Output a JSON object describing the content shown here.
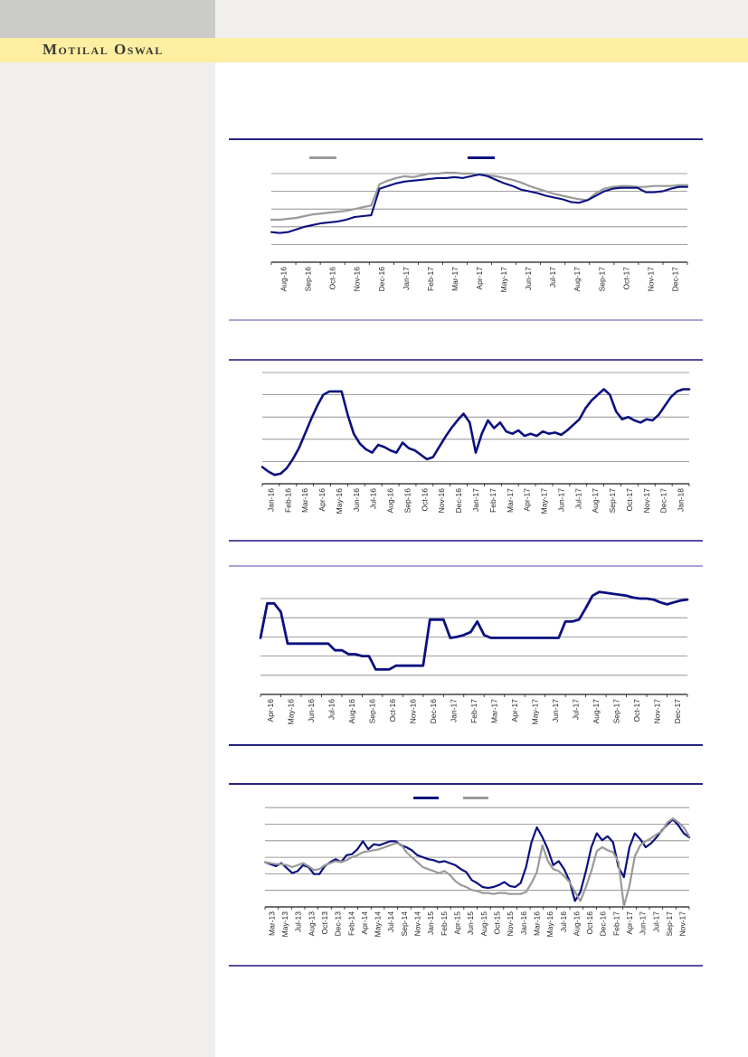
{
  "page": {
    "brand_title": "Motilal Oswal"
  },
  "colors": {
    "navy": "#0b1080",
    "gray": "#9a9a9a",
    "gridline": "#808080",
    "axis": "#1a1a1a",
    "band_yellow": "#fdeea2",
    "sidebar_gray": "#f0efee",
    "top_block_gray": "#cbcbca",
    "brand_text": "#3b3a2e"
  },
  "chart_data": [
    {
      "id": "chart-1",
      "type": "line",
      "title": "",
      "xlabel": "",
      "ylabel": "",
      "y_axis": {
        "labels_visible": false,
        "gridlines": 5
      },
      "legend": {
        "position": "top",
        "entries": [
          {
            "label": "",
            "color": "gray"
          },
          {
            "label": "",
            "color": "navy"
          }
        ]
      },
      "value_scale": "percent of plot height (0 = x-axis, 100 = top gridline); no y-axis tick labels are visible in the source image",
      "x_labels": [
        "Aug-16",
        "Sep-16",
        "Oct-16",
        "Nov-16",
        "Dec-16",
        "Jan-17",
        "Feb-17",
        "Mar-17",
        "Apr-17",
        "May-17",
        "Jun-17",
        "Jul-17",
        "Aug-17",
        "Sep-17",
        "Oct-17",
        "Nov-17",
        "Dec-17"
      ],
      "series": [
        {
          "name": "series-gray",
          "color": "gray",
          "values": [
            48,
            48,
            49,
            50,
            52,
            54,
            55,
            56,
            57,
            58,
            60,
            62,
            64,
            88,
            92,
            95,
            97,
            96,
            98,
            100,
            100,
            101,
            101,
            100,
            100,
            99,
            98,
            97,
            95,
            93,
            90,
            86,
            83,
            80,
            77,
            75,
            73,
            71,
            70,
            78,
            83,
            85,
            86,
            86,
            85,
            85,
            86,
            86,
            86,
            87,
            87
          ]
        },
        {
          "name": "series-navy",
          "color": "navy",
          "values": [
            34,
            33,
            34,
            37,
            40,
            42,
            44,
            45,
            46,
            48,
            51,
            52,
            53,
            83,
            86,
            89,
            91,
            92,
            93,
            94,
            95,
            95,
            96,
            95,
            97,
            99,
            97,
            93,
            89,
            86,
            82,
            80,
            78,
            75,
            73,
            71,
            68,
            67,
            70,
            75,
            80,
            83,
            84,
            84,
            84,
            79,
            79,
            80,
            83,
            85,
            85
          ]
        }
      ]
    },
    {
      "id": "chart-2",
      "type": "line",
      "title": "",
      "xlabel": "",
      "ylabel": "",
      "y_axis": {
        "labels_visible": false,
        "gridlines": 5
      },
      "legend": null,
      "value_scale": "percent of plot height (0 = x-axis, 100 = top gridline); no y-axis tick labels are visible in the source image",
      "x_labels": [
        "Jan-16",
        "Feb-16",
        "Mar-16",
        "Apr-16",
        "May-16",
        "Jun-16",
        "Jul-16",
        "Aug-16",
        "Sep-16",
        "Oct-16",
        "Nov-16",
        "Dec-16",
        "Jan-17",
        "Feb-17",
        "Mar-17",
        "Apr-17",
        "May-17",
        "Jun-17",
        "Jul-17",
        "Aug-17",
        "Sep-17",
        "Oct-17",
        "Nov-17",
        "Dec-17",
        "Jan-18"
      ],
      "series": [
        {
          "name": "series-navy",
          "color": "navy",
          "values": [
            15,
            11,
            8,
            9,
            14,
            22,
            32,
            45,
            58,
            70,
            80,
            83,
            83,
            83,
            62,
            45,
            36,
            31,
            28,
            35,
            33,
            30,
            28,
            37,
            32,
            30,
            26,
            22,
            24,
            33,
            42,
            50,
            57,
            63,
            55,
            28,
            45,
            57,
            50,
            55,
            47,
            45,
            48,
            43,
            45,
            43,
            47,
            45,
            46,
            44,
            48,
            53,
            58,
            68,
            75,
            80,
            85,
            80,
            65,
            58,
            60,
            57,
            55,
            58,
            57,
            62,
            70,
            78,
            83,
            85,
            85
          ]
        }
      ]
    },
    {
      "id": "chart-3",
      "type": "line",
      "title": "",
      "xlabel": "",
      "ylabel": "",
      "y_axis": {
        "labels_visible": false,
        "gridlines": 5
      },
      "legend": null,
      "value_scale": "percent of plot height (0 = x-axis, 100 = top gridline); no y-axis tick labels are visible in the source image",
      "x_labels": [
        "Apr-16",
        "May-16",
        "Jun-16",
        "Jul-16",
        "Aug-16",
        "Sep-16",
        "Oct-16",
        "Nov-16",
        "Dec-16",
        "Jan-17",
        "Feb-17",
        "Mar-17",
        "Apr-17",
        "May-17",
        "Jun-17",
        "Jul-17",
        "Aug-17",
        "Sep-17",
        "Oct-17",
        "Nov-17",
        "Dec-17"
      ],
      "series": [
        {
          "name": "series-navy",
          "color": "navy",
          "values": [
            59,
            95,
            95,
            86,
            53,
            53,
            53,
            53,
            53,
            53,
            53,
            46,
            46,
            42,
            42,
            40,
            40,
            26,
            26,
            26,
            30,
            30,
            30,
            30,
            30,
            78,
            78,
            78,
            59,
            60,
            62,
            65,
            76,
            62,
            59,
            59,
            59,
            59,
            59,
            59,
            59,
            59,
            59,
            59,
            59,
            76,
            76,
            78,
            90,
            103,
            107,
            106,
            105,
            104,
            103,
            101,
            100,
            100,
            99,
            96,
            94,
            96,
            98,
            99
          ]
        }
      ]
    },
    {
      "id": "chart-4",
      "type": "line",
      "title": "",
      "xlabel": "",
      "ylabel": "",
      "y_axis": {
        "labels_visible": false,
        "gridlines": 6
      },
      "legend": {
        "position": "top",
        "entries": [
          {
            "label": "",
            "color": "navy"
          },
          {
            "label": "",
            "color": "gray"
          }
        ]
      },
      "value_scale": "percent of plot height (0 = x-axis, 100 = top gridline); no y-axis tick labels are visible in the source image",
      "x_labels": [
        "Mar-13",
        "May-13",
        "Jul-13",
        "Aug-13",
        "Oct-13",
        "Dec-13",
        "Feb-14",
        "Apr-14",
        "May-14",
        "Jul-14",
        "Sep-14",
        "Nov-14",
        "Jan-15",
        "Feb-15",
        "Apr-15",
        "Jun-15",
        "Aug-15",
        "Oct-15",
        "Nov-15",
        "Jan-16",
        "Mar-16",
        "May-16",
        "Jul-16",
        "Aug-16",
        "Oct-16",
        "Dec-16",
        "Feb-17",
        "Apr-17",
        "Jun-17",
        "Jul-17",
        "Sep-17",
        "Nov-17"
      ],
      "series": [
        {
          "name": "series-navy",
          "color": "navy",
          "values": [
            45,
            43,
            41,
            44,
            39,
            34,
            36,
            42,
            40,
            33,
            33,
            41,
            45,
            48,
            45,
            52,
            53,
            58,
            66,
            58,
            63,
            62,
            64,
            66,
            66,
            62,
            60,
            57,
            52,
            50,
            48,
            47,
            45,
            46,
            44,
            42,
            38,
            35,
            27,
            24,
            20,
            19,
            20,
            22,
            25,
            21,
            20,
            24,
            40,
            65,
            80,
            70,
            58,
            42,
            46,
            38,
            26,
            6,
            15,
            36,
            60,
            74,
            67,
            71,
            65,
            40,
            30,
            60,
            74,
            68,
            60,
            64,
            70,
            77,
            83,
            88,
            82,
            74,
            70
          ]
        },
        {
          "name": "series-gray",
          "color": "gray",
          "values": [
            45,
            44,
            43,
            43,
            42,
            40,
            42,
            44,
            41,
            37,
            38,
            42,
            44,
            46,
            45,
            47,
            50,
            52,
            55,
            56,
            57,
            58,
            60,
            62,
            64,
            63,
            55,
            50,
            45,
            40,
            38,
            36,
            34,
            36,
            32,
            26,
            22,
            20,
            17,
            16,
            14,
            14,
            13,
            14,
            14,
            13,
            13,
            13,
            15,
            24,
            35,
            62,
            46,
            38,
            36,
            31,
            25,
            15,
            6,
            20,
            36,
            56,
            60,
            57,
            55,
            45,
            1,
            21,
            51,
            62,
            66,
            69,
            73,
            76,
            85,
            89,
            85,
            80,
            71
          ]
        }
      ]
    }
  ]
}
